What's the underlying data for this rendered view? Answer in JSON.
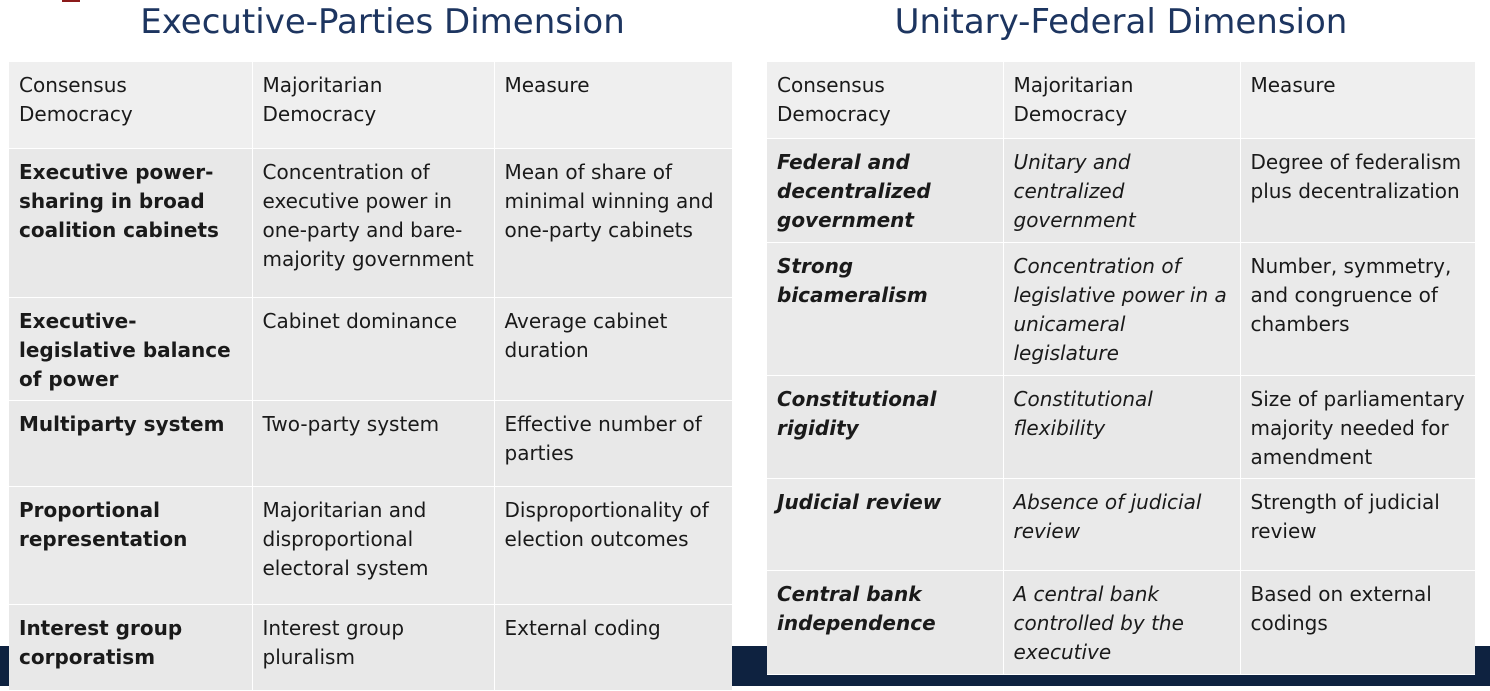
{
  "left": {
    "title": "Executive-Parties Dimension",
    "headers": [
      "Consensus Democracy",
      "Majoritarian Democracy",
      "Measure"
    ],
    "rows": [
      {
        "consensus": "Executive power-sharing in broad coalition cabinets",
        "majoritarian": "Concentration of executive power in one-party and bare-majority government",
        "measure": "Mean of share of minimal winning and one-party cabinets"
      },
      {
        "consensus": "Executive-legislative balance of power",
        "majoritarian": "Cabinet dominance",
        "measure": "Average cabinet duration"
      },
      {
        "consensus": "Multiparty system",
        "majoritarian": "Two-party system",
        "measure": "Effective number of parties"
      },
      {
        "consensus": "Proportional representation",
        "majoritarian": "Majoritarian and disproportional electoral system",
        "measure": "Disproportionality of election outcomes"
      },
      {
        "consensus": "Interest group corporatism",
        "majoritarian": "Interest group pluralism",
        "measure": "External coding"
      }
    ]
  },
  "right": {
    "title": "Unitary-Federal Dimension",
    "headers": [
      "Consensus Democracy",
      "Majoritarian Democracy",
      "Measure"
    ],
    "rows": [
      {
        "consensus": "Federal and decentralized government",
        "majoritarian": "Unitary and centralized government",
        "measure": "Degree of federalism plus decentralization"
      },
      {
        "consensus": "Strong bicameralism",
        "majoritarian": "Concentration of legislative power in a unicameral legislature",
        "measure": "Number, symmetry, and congruence of chambers"
      },
      {
        "consensus": "Constitutional rigidity",
        "majoritarian": "Constitutional flexibility",
        "measure": "Size of parliamentary majority needed for amendment"
      },
      {
        "consensus": "Judicial review",
        "majoritarian": "Absence of judicial review",
        "measure": "Strength of judicial review"
      },
      {
        "consensus": "Central bank independence",
        "majoritarian": "A central bank controlled by the executive",
        "measure": "Based on external codings"
      }
    ]
  }
}
